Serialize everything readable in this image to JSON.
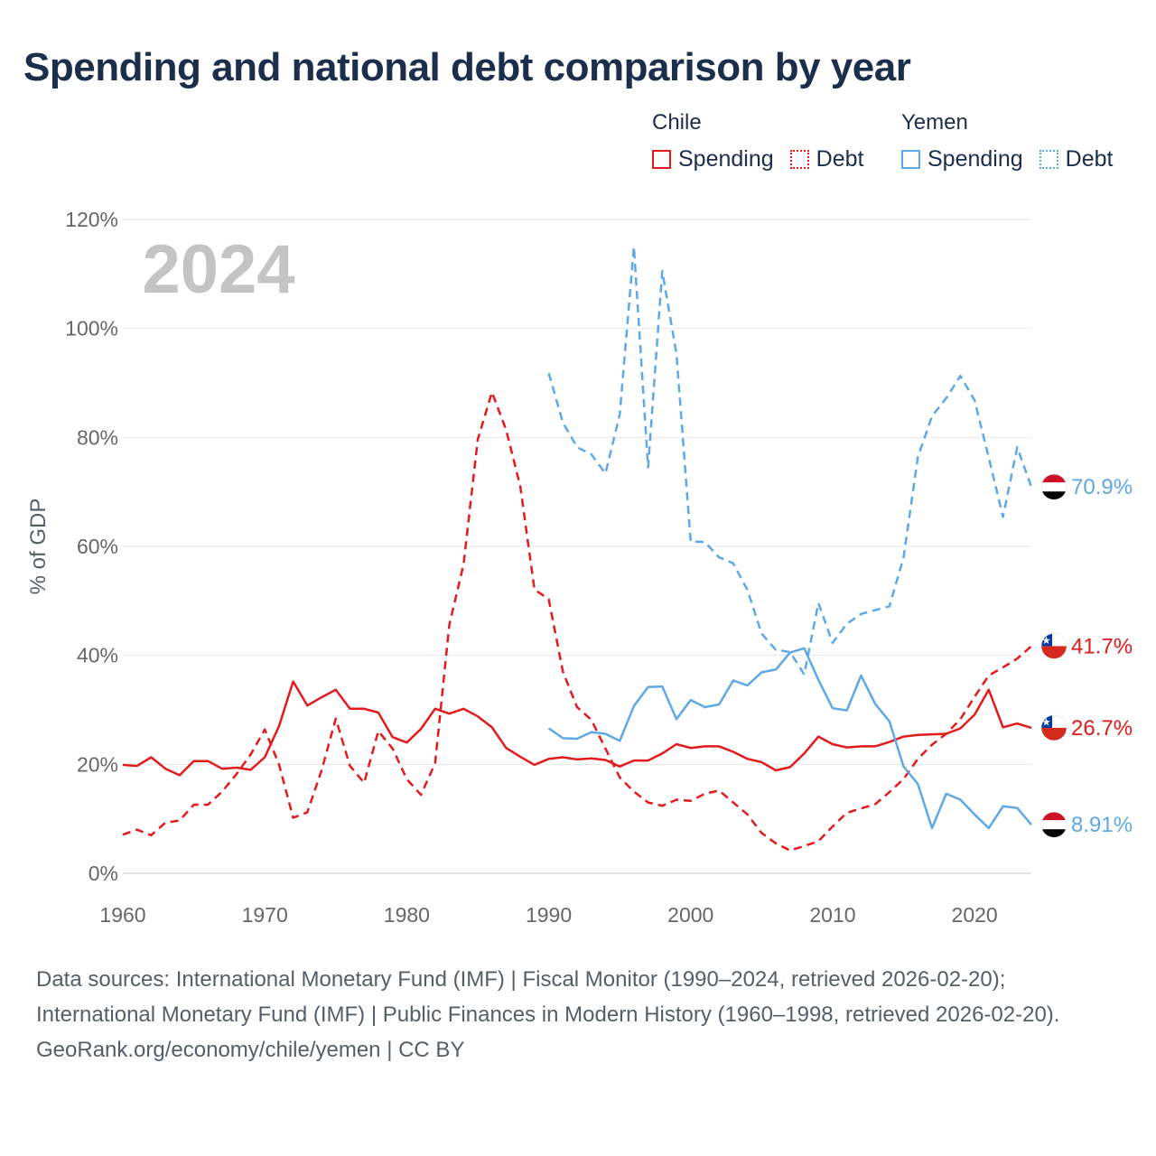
{
  "title": "Spending and national debt comparison by year",
  "legend": {
    "groups": [
      {
        "name": "Chile",
        "items": [
          {
            "label": "Spending",
            "style": "solid",
            "color": "#e31a1c"
          },
          {
            "label": "Debt",
            "style": "dotted",
            "color": "#e31a1c"
          }
        ]
      },
      {
        "name": "Yemen",
        "items": [
          {
            "label": "Spending",
            "style": "solid",
            "color": "#5da8e6"
          },
          {
            "label": "Debt",
            "style": "dotted",
            "color": "#5da8e6"
          }
        ]
      }
    ]
  },
  "chart_data": {
    "type": "line",
    "title": "Spending and national debt comparison by year",
    "ylabel": "% of GDP",
    "xlabel": "",
    "year_label": "2024",
    "xlim": [
      1960,
      2024
    ],
    "ylim": [
      0,
      120
    ],
    "x_ticks": [
      "1960",
      "1970",
      "1980",
      "1990",
      "2000",
      "2010",
      "2020"
    ],
    "y_ticks": [
      "0%",
      "20%",
      "40%",
      "60%",
      "80%",
      "100%",
      "120%"
    ],
    "series": [
      {
        "name": "Chile Spending",
        "country": "Chile",
        "metric": "Spending",
        "color": "#e31a1c",
        "dash": "solid",
        "end_label": "26.7%",
        "flag": "chile",
        "x": [
          1960,
          1961,
          1962,
          1963,
          1964,
          1965,
          1966,
          1967,
          1968,
          1969,
          1970,
          1971,
          1972,
          1973,
          1974,
          1975,
          1976,
          1977,
          1978,
          1979,
          1980,
          1981,
          1982,
          1983,
          1984,
          1985,
          1986,
          1987,
          1988,
          1989,
          1990,
          1991,
          1992,
          1993,
          1994,
          1995,
          1996,
          1997,
          1998,
          1999,
          2000,
          2001,
          2002,
          2003,
          2004,
          2005,
          2006,
          2007,
          2008,
          2009,
          2010,
          2011,
          2012,
          2013,
          2014,
          2015,
          2016,
          2017,
          2018,
          2019,
          2020,
          2021,
          2022,
          2023,
          2024
        ],
        "values": [
          19.9,
          19.7,
          21.3,
          19.2,
          18.0,
          20.6,
          20.6,
          19.2,
          19.4,
          19.0,
          21.3,
          27.0,
          35.2,
          30.8,
          32.3,
          33.7,
          30.2,
          30.2,
          29.5,
          25.0,
          24.0,
          26.5,
          30.2,
          29.3,
          30.2,
          28.8,
          26.8,
          23.0,
          21.4,
          19.9,
          21.0,
          21.3,
          20.9,
          21.1,
          20.8,
          19.6,
          20.7,
          20.7,
          22.0,
          23.7,
          23.0,
          23.3,
          23.3,
          22.3,
          21.0,
          20.4,
          18.9,
          19.5,
          22.0,
          25.1,
          23.7,
          23.1,
          23.3,
          23.3,
          24.1,
          25.1,
          25.4,
          25.5,
          25.6,
          26.6,
          29.1,
          33.7,
          26.8,
          27.5,
          26.7
        ]
      },
      {
        "name": "Chile Debt",
        "country": "Chile",
        "metric": "Debt",
        "color": "#e31a1c",
        "dash": "dashed",
        "end_label": "41.7%",
        "flag": "chile",
        "x": [
          1960,
          1961,
          1962,
          1963,
          1964,
          1965,
          1966,
          1967,
          1968,
          1969,
          1970,
          1971,
          1972,
          1973,
          1974,
          1975,
          1976,
          1977,
          1978,
          1979,
          1980,
          1981,
          1982,
          1983,
          1984,
          1985,
          1986,
          1987,
          1988,
          1989,
          1990,
          1991,
          1992,
          1993,
          1994,
          1995,
          1996,
          1997,
          1998,
          1999,
          2000,
          2001,
          2002,
          2003,
          2004,
          2005,
          2006,
          2007,
          2008,
          2009,
          2010,
          2011,
          2012,
          2013,
          2014,
          2015,
          2016,
          2017,
          2018,
          2019,
          2020,
          2021,
          2022,
          2023,
          2024
        ],
        "values": [
          7.1,
          8.0,
          7.0,
          9.3,
          9.7,
          12.6,
          12.6,
          15.0,
          18.2,
          21.8,
          26.4,
          20.0,
          10.2,
          11.2,
          18.9,
          28.4,
          19.7,
          16.6,
          26.1,
          22.9,
          17.3,
          14.4,
          20.2,
          45.6,
          56.7,
          79.6,
          88.3,
          81.4,
          71.0,
          52.1,
          50.3,
          37.0,
          30.5,
          28.2,
          22.9,
          17.6,
          15.0,
          13.0,
          12.4,
          13.5,
          13.3,
          14.6,
          15.2,
          13.0,
          10.8,
          7.4,
          5.5,
          4.2,
          5.0,
          5.9,
          8.6,
          11.1,
          11.9,
          12.7,
          14.9,
          17.3,
          21.0,
          23.6,
          25.6,
          28.3,
          32.4,
          36.3,
          37.8,
          39.4,
          41.7
        ]
      },
      {
        "name": "Yemen Spending",
        "country": "Yemen",
        "metric": "Spending",
        "color": "#5da8e6",
        "dash": "solid",
        "end_label": "8.91%",
        "flag": "yemen",
        "x": [
          1990,
          1991,
          1992,
          1993,
          1994,
          1995,
          1996,
          1997,
          1998,
          1999,
          2000,
          2001,
          2002,
          2003,
          2004,
          2005,
          2006,
          2007,
          2008,
          2009,
          2010,
          2011,
          2012,
          2013,
          2014,
          2015,
          2016,
          2017,
          2018,
          2019,
          2020,
          2021,
          2022,
          2023,
          2024
        ],
        "values": [
          26.6,
          24.8,
          24.7,
          25.9,
          25.6,
          24.3,
          30.7,
          34.2,
          34.3,
          28.3,
          31.8,
          30.5,
          31.0,
          35.4,
          34.5,
          36.9,
          37.4,
          40.5,
          41.3,
          35.5,
          30.3,
          29.9,
          36.3,
          31.1,
          27.9,
          19.6,
          16.4,
          8.3,
          14.6,
          13.5,
          10.8,
          8.3,
          12.3,
          12.0,
          8.91
        ]
      },
      {
        "name": "Yemen Debt",
        "country": "Yemen",
        "metric": "Debt",
        "color": "#5da8e6",
        "dash": "dashed",
        "end_label": "70.9%",
        "flag": "yemen",
        "x": [
          1990,
          1991,
          1992,
          1993,
          1994,
          1995,
          1996,
          1997,
          1998,
          1999,
          2000,
          2001,
          2002,
          2003,
          2004,
          2005,
          2006,
          2007,
          2008,
          2009,
          2010,
          2011,
          2012,
          2013,
          2014,
          2015,
          2016,
          2017,
          2018,
          2019,
          2020,
          2021,
          2022,
          2023,
          2024
        ],
        "values": [
          91.8,
          82.7,
          78.2,
          76.9,
          73.4,
          84.2,
          115.0,
          74.5,
          110.5,
          95.4,
          60.9,
          60.8,
          58.0,
          56.9,
          52.0,
          44.0,
          41.0,
          40.6,
          36.5,
          49.6,
          42.3,
          45.8,
          47.6,
          48.3,
          49.0,
          58.0,
          76.4,
          83.9,
          87.2,
          91.3,
          86.8,
          76.3,
          65.4,
          78.2,
          70.9
        ]
      }
    ]
  },
  "footer": {
    "sources": "Data sources: International Monetary Fund (IMF) | Fiscal Monitor (1990–2024, retrieved 2026-02-20); International Monetary Fund (IMF) | Public Finances in Modern History (1960–1998, retrieved 2026-02-20).",
    "credit": "GeoRank.org/economy/chile/yemen | CC BY"
  }
}
